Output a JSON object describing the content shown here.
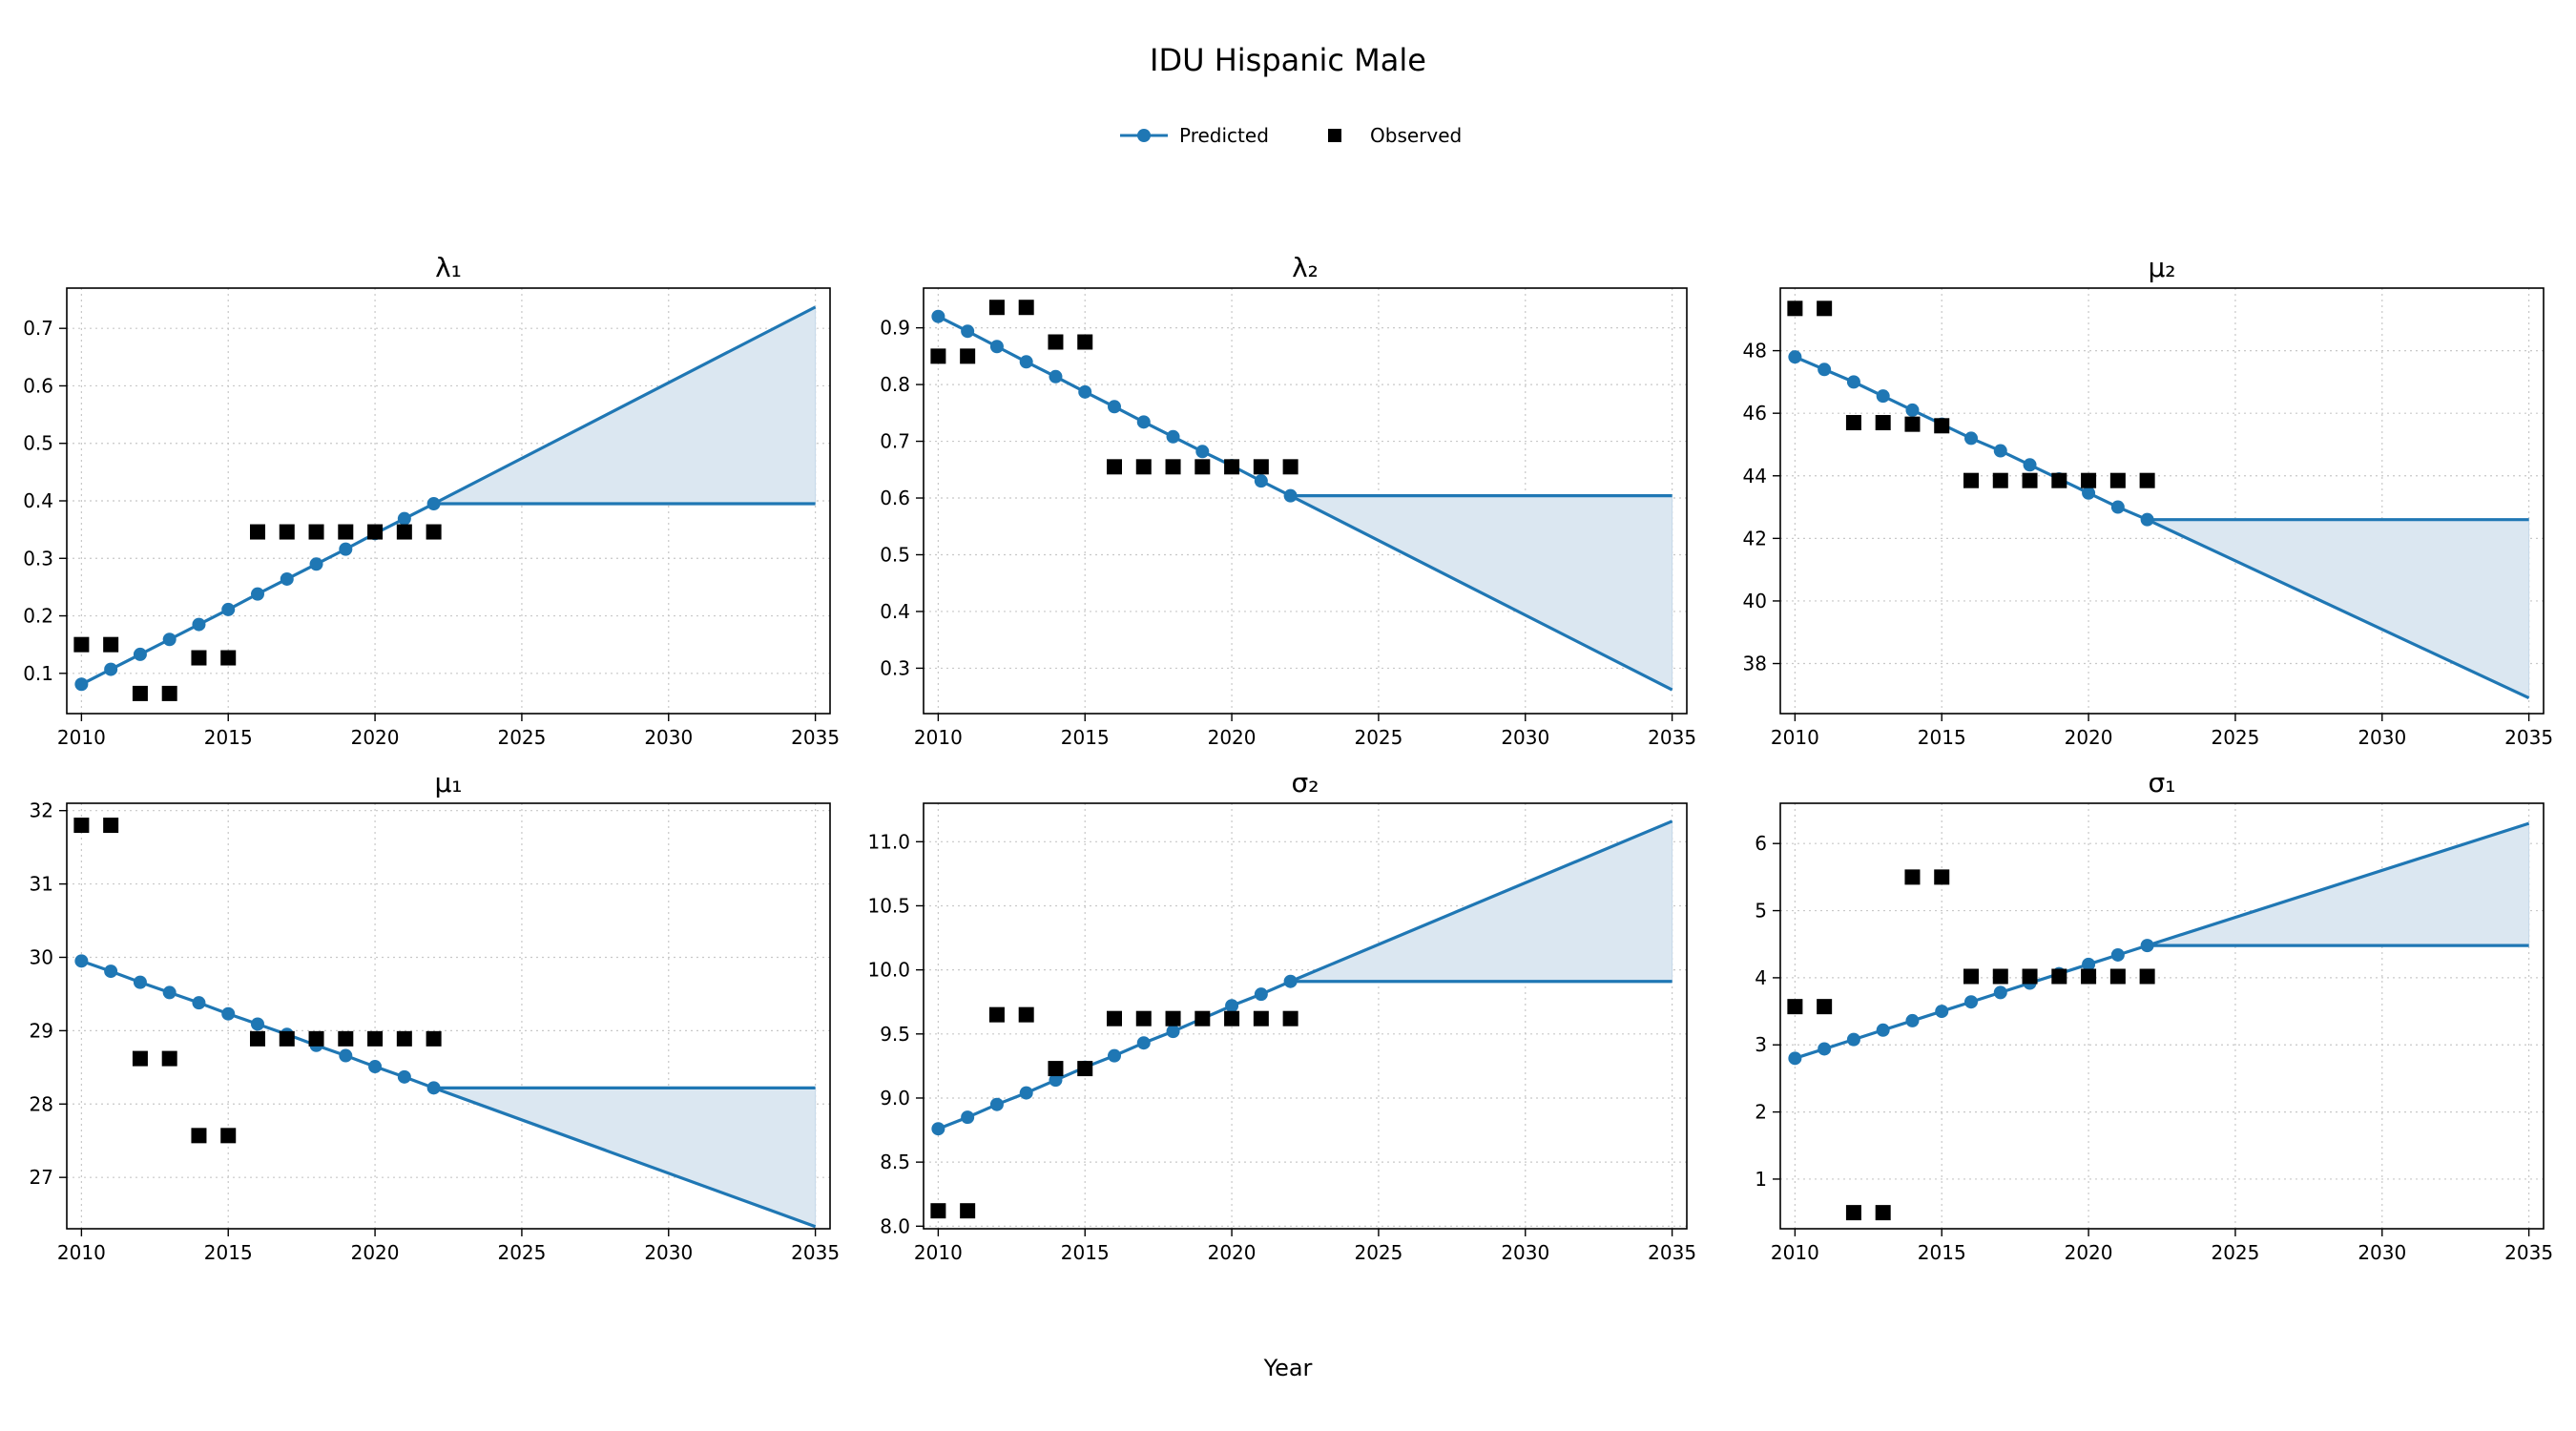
{
  "figure": {
    "title": "IDU Hispanic Male",
    "xlabel": "Year",
    "legend": {
      "predicted_label": "Predicted",
      "observed_label": "Observed",
      "placement": "top-center"
    },
    "colors": {
      "predicted": "#1f77b4",
      "band": "#dbe7f1",
      "observed": "#000000",
      "grid": "#c8c8c8"
    }
  },
  "chart_data": [
    {
      "type": "line",
      "title": "λ₁",
      "xlim": [
        2010,
        2035
      ],
      "ylim": [
        0.03,
        0.77
      ],
      "xticks": [
        2010,
        2015,
        2020,
        2025,
        2030,
        2035
      ],
      "yticks": [
        0.1,
        0.2,
        0.3,
        0.4,
        0.5,
        0.6,
        0.7
      ],
      "grid": true,
      "predicted": {
        "x": [
          2010,
          2011,
          2012,
          2013,
          2014,
          2015,
          2016,
          2017,
          2018,
          2019,
          2020,
          2021,
          2022
        ],
        "y": [
          0.081,
          0.107,
          0.133,
          0.159,
          0.185,
          0.211,
          0.238,
          0.264,
          0.29,
          0.316,
          0.343,
          0.369,
          0.395
        ]
      },
      "observed": {
        "x": [
          2010,
          2011,
          2012,
          2013,
          2014,
          2015,
          2016,
          2017,
          2018,
          2019,
          2020,
          2021,
          2022
        ],
        "y": [
          0.15,
          0.15,
          0.065,
          0.065,
          0.127,
          0.127,
          0.346,
          0.346,
          0.346,
          0.346,
          0.346,
          0.346,
          0.346
        ]
      },
      "projection": {
        "x": [
          2022,
          2035
        ],
        "flat": [
          0.395,
          0.395
        ],
        "trend": [
          0.395,
          0.737
        ]
      }
    },
    {
      "type": "line",
      "title": "λ₂",
      "xlim": [
        2010,
        2035
      ],
      "ylim": [
        0.22,
        0.97
      ],
      "xticks": [
        2010,
        2015,
        2020,
        2025,
        2030,
        2035
      ],
      "yticks": [
        0.3,
        0.4,
        0.5,
        0.6,
        0.7,
        0.8,
        0.9
      ],
      "grid": true,
      "predicted": {
        "x": [
          2010,
          2011,
          2012,
          2013,
          2014,
          2015,
          2016,
          2017,
          2018,
          2019,
          2020,
          2021,
          2022
        ],
        "y": [
          0.92,
          0.894,
          0.867,
          0.84,
          0.814,
          0.787,
          0.761,
          0.734,
          0.708,
          0.682,
          0.657,
          0.63,
          0.604
        ]
      },
      "observed": {
        "x": [
          2010,
          2011,
          2012,
          2013,
          2014,
          2015,
          2016,
          2017,
          2018,
          2019,
          2020,
          2021,
          2022
        ],
        "y": [
          0.85,
          0.85,
          0.936,
          0.936,
          0.875,
          0.875,
          0.655,
          0.655,
          0.655,
          0.655,
          0.655,
          0.655,
          0.655
        ]
      },
      "projection": {
        "x": [
          2022,
          2035
        ],
        "flat": [
          0.604,
          0.604
        ],
        "trend": [
          0.604,
          0.262
        ]
      }
    },
    {
      "type": "line",
      "title": "μ₂",
      "xlim": [
        2010,
        2035
      ],
      "ylim": [
        36.4,
        50.0
      ],
      "xticks": [
        2010,
        2015,
        2020,
        2025,
        2030,
        2035
      ],
      "yticks": [
        38,
        40,
        42,
        44,
        46,
        48
      ],
      "grid": true,
      "predicted": {
        "x": [
          2010,
          2011,
          2012,
          2013,
          2014,
          2015,
          2016,
          2017,
          2018,
          2019,
          2020,
          2021,
          2022
        ],
        "y": [
          47.8,
          47.4,
          47.0,
          46.55,
          46.1,
          45.65,
          45.2,
          44.8,
          44.35,
          43.9,
          43.45,
          43.0,
          42.6
        ]
      },
      "observed": {
        "x": [
          2010,
          2011,
          2012,
          2013,
          2014,
          2015,
          2016,
          2017,
          2018,
          2019,
          2020,
          2021,
          2022
        ],
        "y": [
          49.35,
          49.35,
          45.7,
          45.7,
          45.65,
          45.6,
          43.85,
          43.85,
          43.85,
          43.85,
          43.85,
          43.85,
          43.85
        ]
      },
      "projection": {
        "x": [
          2022,
          2035
        ],
        "flat": [
          42.6,
          42.6
        ],
        "trend": [
          42.6,
          36.9
        ]
      }
    },
    {
      "type": "line",
      "title": "μ₁",
      "xlim": [
        2010,
        2035
      ],
      "ylim": [
        26.3,
        32.1
      ],
      "xticks": [
        2010,
        2015,
        2020,
        2025,
        2030,
        2035
      ],
      "yticks": [
        27,
        28,
        29,
        30,
        31,
        32
      ],
      "grid": true,
      "predicted": {
        "x": [
          2010,
          2011,
          2012,
          2013,
          2014,
          2015,
          2016,
          2017,
          2018,
          2019,
          2020,
          2021,
          2022
        ],
        "y": [
          29.95,
          29.81,
          29.66,
          29.52,
          29.38,
          29.23,
          29.09,
          28.95,
          28.8,
          28.66,
          28.51,
          28.37,
          28.22
        ]
      },
      "observed": {
        "x": [
          2010,
          2011,
          2012,
          2013,
          2014,
          2015,
          2016,
          2017,
          2018,
          2019,
          2020,
          2021,
          2022
        ],
        "y": [
          31.8,
          31.8,
          28.62,
          28.62,
          27.57,
          27.57,
          28.89,
          28.89,
          28.89,
          28.89,
          28.89,
          28.89,
          28.89
        ]
      },
      "projection": {
        "x": [
          2022,
          2035
        ],
        "flat": [
          28.22,
          28.22
        ],
        "trend": [
          28.22,
          26.33
        ]
      }
    },
    {
      "type": "line",
      "title": "σ₂",
      "xlim": [
        2010,
        2035
      ],
      "ylim": [
        7.98,
        11.3
      ],
      "xticks": [
        2010,
        2015,
        2020,
        2025,
        2030,
        2035
      ],
      "yticks": [
        8.0,
        8.5,
        9.0,
        9.5,
        10.0,
        10.5,
        11.0
      ],
      "ytick_labels": [
        "8.0",
        "8.5",
        "9.0",
        "9.5",
        "10.0",
        "10.5",
        "11.0"
      ],
      "grid": true,
      "predicted": {
        "x": [
          2010,
          2011,
          2012,
          2013,
          2014,
          2015,
          2016,
          2017,
          2018,
          2019,
          2020,
          2021,
          2022
        ],
        "y": [
          8.76,
          8.85,
          8.95,
          9.04,
          9.14,
          9.24,
          9.33,
          9.43,
          9.52,
          9.62,
          9.72,
          9.81,
          9.91
        ]
      },
      "observed": {
        "x": [
          2010,
          2011,
          2012,
          2013,
          2014,
          2015,
          2016,
          2017,
          2018,
          2019,
          2020,
          2021,
          2022
        ],
        "y": [
          8.12,
          8.12,
          9.65,
          9.65,
          9.23,
          9.23,
          9.62,
          9.62,
          9.62,
          9.62,
          9.62,
          9.62,
          9.62
        ]
      },
      "projection": {
        "x": [
          2022,
          2035
        ],
        "flat": [
          9.91,
          9.91
        ],
        "trend": [
          9.91,
          11.16
        ]
      }
    },
    {
      "type": "line",
      "title": "σ₁",
      "xlim": [
        2010,
        2035
      ],
      "ylim": [
        0.26,
        6.6
      ],
      "xticks": [
        2010,
        2015,
        2020,
        2025,
        2030,
        2035
      ],
      "yticks": [
        1,
        2,
        3,
        4,
        5,
        6
      ],
      "grid": true,
      "predicted": {
        "x": [
          2010,
          2011,
          2012,
          2013,
          2014,
          2015,
          2016,
          2017,
          2018,
          2019,
          2020,
          2021,
          2022
        ],
        "y": [
          2.8,
          2.94,
          3.08,
          3.22,
          3.36,
          3.5,
          3.64,
          3.78,
          3.92,
          4.06,
          4.2,
          4.34,
          4.48
        ]
      },
      "observed": {
        "x": [
          2010,
          2011,
          2012,
          2013,
          2014,
          2015,
          2016,
          2017,
          2018,
          2019,
          2020,
          2021,
          2022
        ],
        "y": [
          3.57,
          3.57,
          0.5,
          0.5,
          5.5,
          5.5,
          4.02,
          4.02,
          4.02,
          4.02,
          4.02,
          4.02,
          4.02
        ]
      },
      "projection": {
        "x": [
          2022,
          2035
        ],
        "flat": [
          4.48,
          4.48
        ],
        "trend": [
          4.48,
          6.3
        ]
      }
    }
  ]
}
